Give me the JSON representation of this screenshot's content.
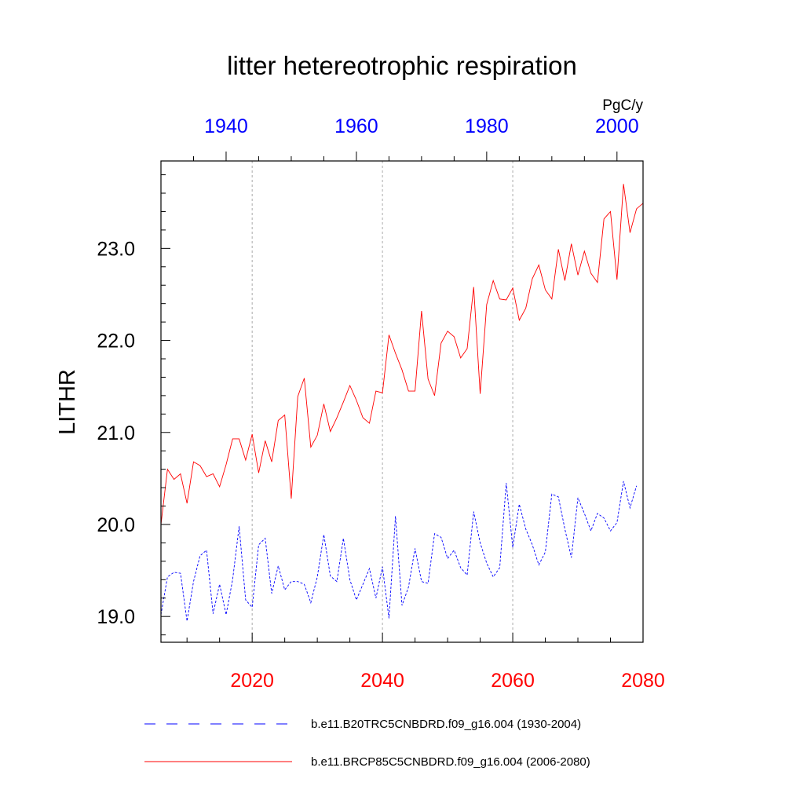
{
  "chart_data": {
    "type": "line",
    "title": "litter hetereotrophic respiration",
    "ylabel": "LITHR",
    "units": "PgC/y",
    "ylim": [
      18.72,
      23.95
    ],
    "y_ticks": [
      {
        "value": 19.0,
        "label": "19.0"
      },
      {
        "value": 20.0,
        "label": "20.0"
      },
      {
        "value": 21.0,
        "label": "21.0"
      },
      {
        "value": 22.0,
        "label": "22.0"
      },
      {
        "value": 23.0,
        "label": "23.0"
      }
    ],
    "x_bottom": {
      "range": [
        2006,
        2080
      ],
      "ticks": [
        {
          "value": 2020,
          "label": "2020"
        },
        {
          "value": 2040,
          "label": "2040"
        },
        {
          "value": 2060,
          "label": "2060"
        },
        {
          "value": 2080,
          "label": "2080"
        }
      ],
      "color": "#ff0000"
    },
    "x_top": {
      "range": [
        1930,
        2004
      ],
      "ticks": [
        {
          "value": 1940,
          "label": "1940"
        },
        {
          "value": 1960,
          "label": "1960"
        },
        {
          "value": 1980,
          "label": "1980"
        },
        {
          "value": 2000,
          "label": "2000"
        }
      ],
      "color": "#0000ff"
    },
    "gridlines_x": [
      2020,
      2040,
      2060
    ],
    "legend_position": "bottom",
    "series": [
      {
        "name": "b.e11.B20TRC5CNBDRD.f09_g16.004 (1930-2004)",
        "axis": "top",
        "color": "#0000ff",
        "dash": "dashed",
        "x_start": 1930,
        "values": [
          19.02,
          19.43,
          19.48,
          19.47,
          18.95,
          19.38,
          19.66,
          19.72,
          19.03,
          19.35,
          19.02,
          19.4,
          19.98,
          19.18,
          19.1,
          19.78,
          19.85,
          19.25,
          19.55,
          19.29,
          19.38,
          19.38,
          19.35,
          19.15,
          19.43,
          19.89,
          19.44,
          19.38,
          19.85,
          19.4,
          19.18,
          19.35,
          19.52,
          19.2,
          19.54,
          18.98,
          20.09,
          19.12,
          19.32,
          19.74,
          19.38,
          19.36,
          19.9,
          19.86,
          19.63,
          19.72,
          19.53,
          19.45,
          20.14,
          19.8,
          19.58,
          19.43,
          19.53,
          20.45,
          19.75,
          20.22,
          19.95,
          19.78,
          19.56,
          19.7,
          20.33,
          20.3,
          19.95,
          19.64,
          20.29,
          20.12,
          19.93,
          20.12,
          20.07,
          19.93,
          20.02,
          20.47,
          20.18,
          20.42
        ]
      },
      {
        "name": "b.e11.BRCP85C5CNBDRD.f09_g16.004 (2006-2080)",
        "axis": "bottom",
        "color": "#ff0000",
        "dash": "solid",
        "x_start": 2006,
        "values": [
          20.0,
          20.6,
          20.49,
          20.55,
          20.23,
          20.68,
          20.64,
          20.52,
          20.55,
          20.41,
          20.65,
          20.93,
          20.93,
          20.7,
          20.98,
          20.56,
          20.91,
          20.68,
          21.13,
          21.19,
          20.28,
          21.39,
          21.59,
          20.84,
          20.97,
          21.31,
          21.01,
          21.16,
          21.33,
          21.51,
          21.35,
          21.16,
          21.1,
          21.45,
          21.43,
          22.06,
          21.86,
          21.68,
          21.45,
          21.45,
          22.32,
          21.58,
          21.4,
          21.97,
          22.1,
          22.04,
          21.81,
          21.91,
          22.58,
          21.42,
          22.39,
          22.65,
          22.45,
          22.44,
          22.57,
          22.22,
          22.35,
          22.67,
          22.82,
          22.55,
          22.45,
          22.99,
          22.65,
          23.05,
          22.71,
          22.97,
          22.73,
          22.63,
          23.32,
          23.4,
          22.66,
          23.7,
          23.17,
          23.43,
          23.49
        ]
      }
    ]
  }
}
